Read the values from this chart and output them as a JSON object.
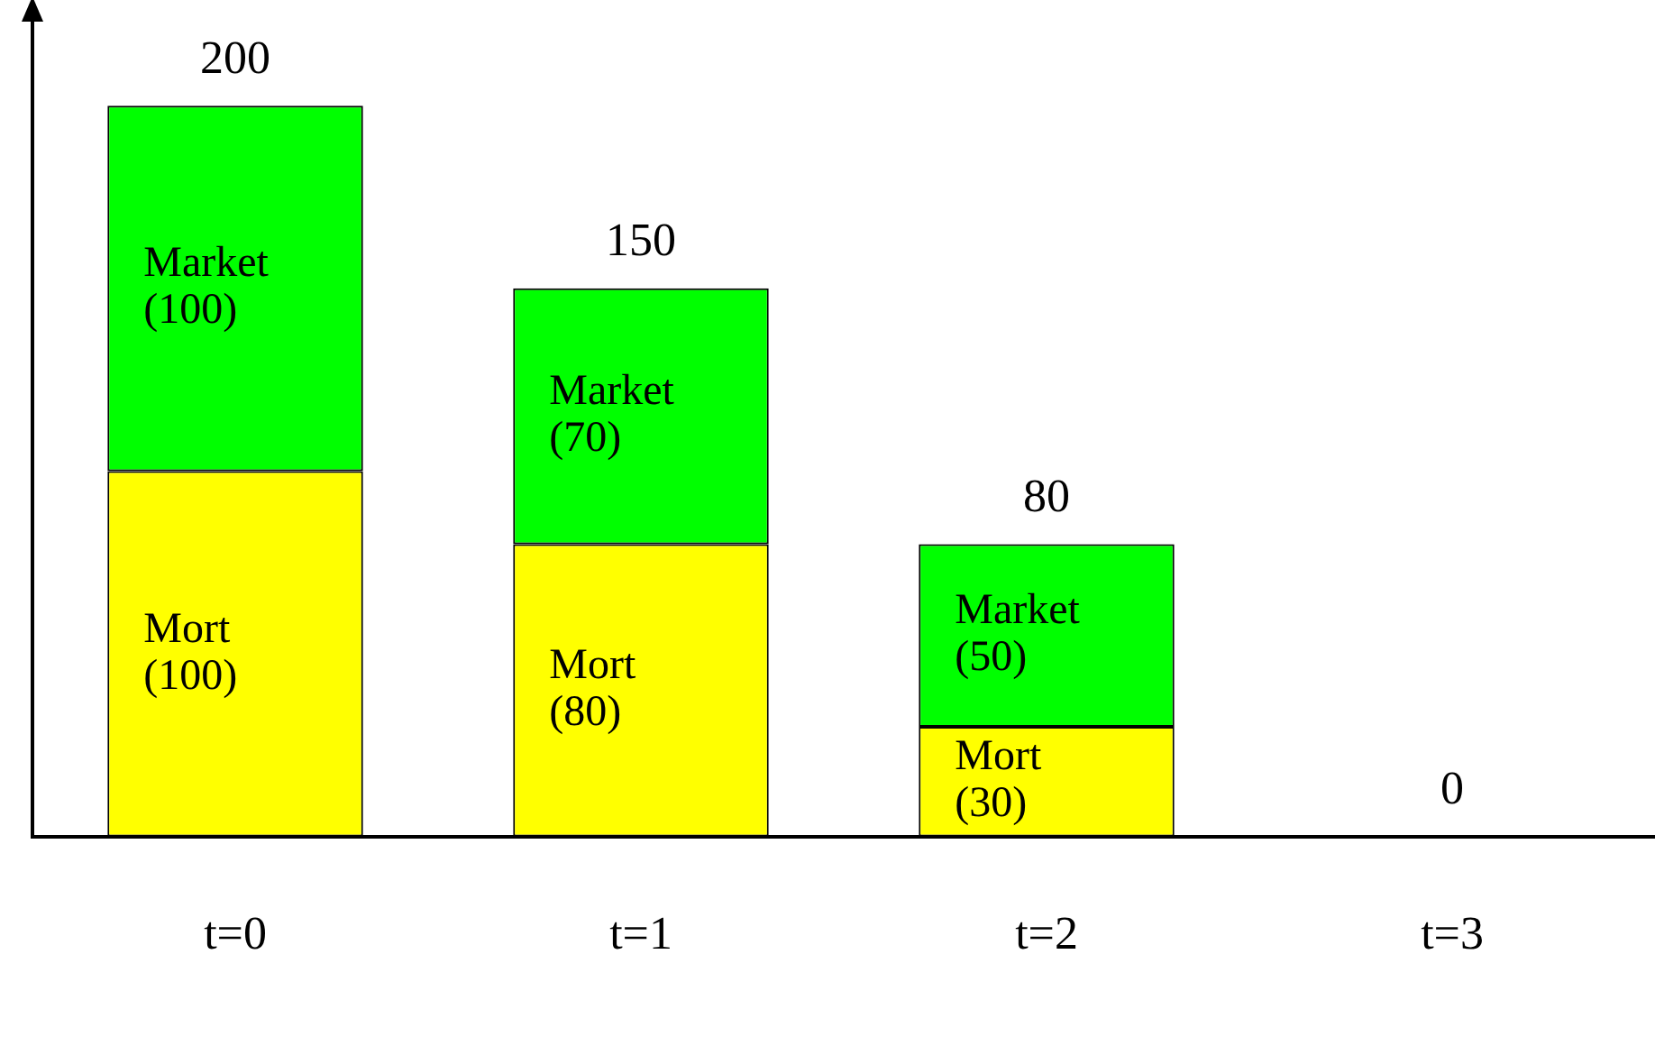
{
  "chart_data": {
    "type": "bar",
    "stacked": true,
    "categories": [
      "t=0",
      "t=1",
      "t=2",
      "t=3"
    ],
    "series": [
      {
        "name": "Mort",
        "color": "#ffff00",
        "values": [
          100,
          80,
          30,
          0
        ],
        "value_labels": [
          "(100)",
          "(80)",
          "(30)",
          null
        ]
      },
      {
        "name": "Market",
        "color": "#00ff00",
        "values": [
          100,
          70,
          50,
          0
        ],
        "value_labels": [
          "(100)",
          "(70)",
          "(50)",
          null
        ]
      }
    ],
    "totals": [
      "200",
      "150",
      "80",
      "0"
    ],
    "grid": false,
    "legend": false,
    "tick_labels": "x"
  }
}
